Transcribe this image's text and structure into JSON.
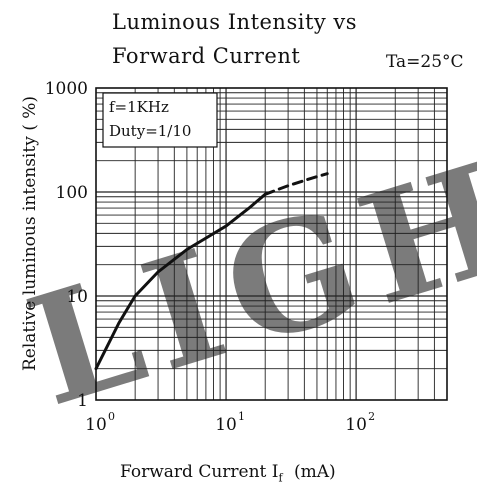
{
  "chart_data": {
    "type": "line",
    "title_line1": "Luminous Intensity vs",
    "title_line2": "Forward Current",
    "condition": "Ta=25°C",
    "legend_lines": [
      "f=1KHz",
      "Duty=1/10"
    ],
    "xlabel": "Forward Current  I",
    "xlabel_sub": "f",
    "xlabel_unit": "(mA)",
    "ylabel": "Relative luminous intensity ( %)",
    "x_scale": "log",
    "y_scale": "log",
    "xlim": [
      1,
      500
    ],
    "ylim": [
      1,
      1000
    ],
    "x_ticks": [
      {
        "value": 1,
        "base": "10",
        "exp": "0"
      },
      {
        "value": 10,
        "base": "10",
        "exp": "1"
      },
      {
        "value": 100,
        "base": "10",
        "exp": "2"
      }
    ],
    "y_ticks": [
      {
        "value": 1,
        "label": "1"
      },
      {
        "value": 10,
        "label": "10"
      },
      {
        "value": 100,
        "label": "100"
      },
      {
        "value": 1000,
        "label": "1000"
      }
    ],
    "grid": true,
    "series": [
      {
        "style": "solid",
        "x": [
          1,
          1.5,
          2,
          3,
          5,
          7,
          10,
          15,
          20
        ],
        "y": [
          2,
          5.5,
          10,
          17,
          28,
          36,
          47,
          70,
          95
        ]
      },
      {
        "style": "dashed",
        "x": [
          20,
          30,
          45,
          60
        ],
        "y": [
          95,
          115,
          135,
          150
        ]
      }
    ],
    "watermark": "LIGH"
  }
}
